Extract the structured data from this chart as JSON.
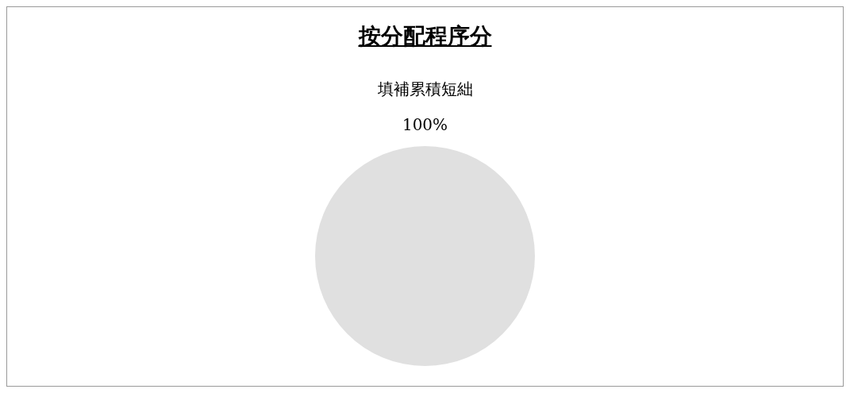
{
  "chart_data": {
    "type": "pie",
    "title": "按分配程序分",
    "categories": [
      "填補累積短絀"
    ],
    "values": [
      100
    ],
    "value_labels": [
      "100%"
    ],
    "colors": [
      "#e0e0e0"
    ],
    "legend": false
  }
}
